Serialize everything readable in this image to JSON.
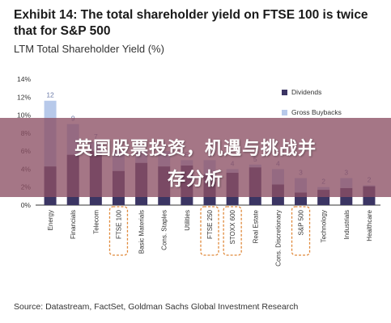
{
  "header": {
    "title": "Exhibit 14: The total shareholder yield on FTSE 100 is twice that for S&P 500",
    "subtitle": "LTM Total Shareholder Yield (%)"
  },
  "source": "Source: Datastream, FactSet, Goldman Sachs Global Investment Research",
  "banner": {
    "line1": "英国股票投资，机遇与挑战并",
    "line2": "存分析"
  },
  "colors": {
    "dividends": "#3b3563",
    "buybacks": "#b7c9ea",
    "highlight": "#e08a3c",
    "label": "#6b7aa8"
  },
  "chart_data": {
    "type": "bar",
    "stacked": true,
    "categories": [
      "Energy",
      "Financials",
      "Telecom",
      "FTSE 100",
      "Basic Materials",
      "Cons. Staples",
      "Utilities",
      "FTSE 250",
      "STOXX 600",
      "Real Estate",
      "Cons. Discretionary",
      "S&P 500",
      "Technology",
      "Industrials",
      "Healthcare"
    ],
    "series": [
      {
        "name": "Dividends",
        "values": [
          4.3,
          5.6,
          6.0,
          3.8,
          4.7,
          4.3,
          4.4,
          3.4,
          3.6,
          4.2,
          2.3,
          1.4,
          1.7,
          1.9,
          2.1
        ]
      },
      {
        "name": "Gross Buybacks",
        "values": [
          7.3,
          3.4,
          1.0,
          2.2,
          1.3,
          1.7,
          0.6,
          1.6,
          0.4,
          0.3,
          1.7,
          1.6,
          0.3,
          1.1,
          0.1
        ]
      }
    ],
    "totals_labels": [
      "12",
      "9",
      "7",
      "6",
      "6",
      "6",
      "5",
      "5",
      "4",
      "5",
      "4",
      "3",
      "2",
      "3",
      "2"
    ],
    "highlighted": [
      "FTSE 100",
      "FTSE 250",
      "STOXX 600",
      "S&P 500"
    ],
    "ylim": [
      0,
      14
    ],
    "yticks": [
      "0%",
      "2%",
      "4%",
      "6%",
      "8%",
      "10%",
      "12%",
      "14%"
    ],
    "legend": [
      "Dividends",
      "Gross Buybacks"
    ],
    "legend_position": "right",
    "grid": false
  }
}
